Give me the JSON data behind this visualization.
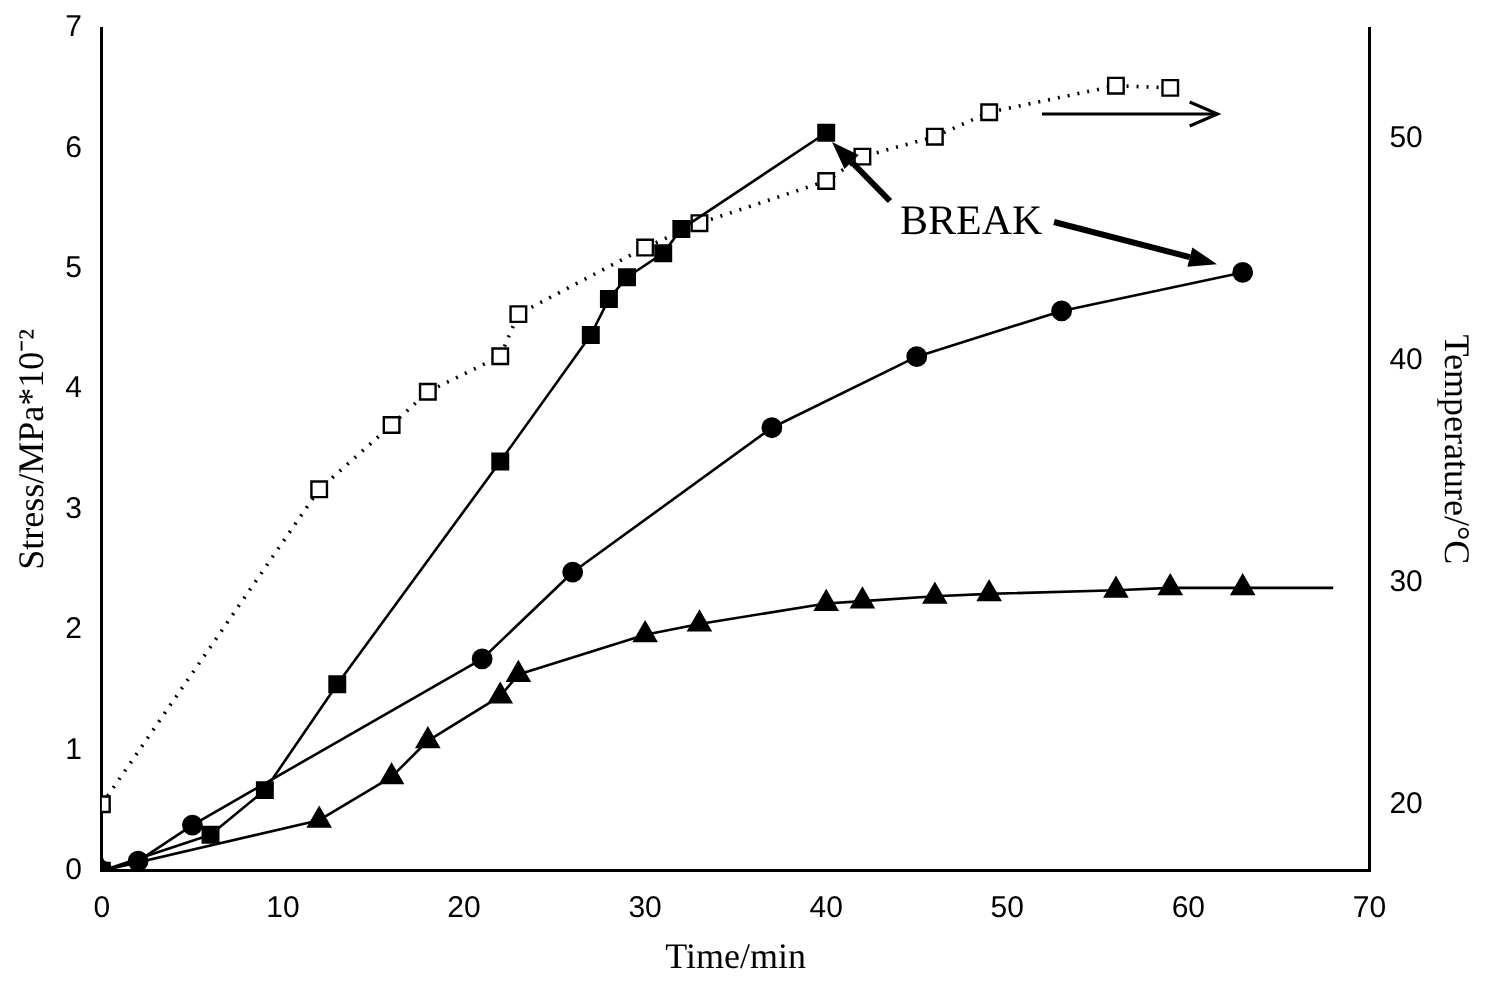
{
  "chart_data": {
    "type": "line",
    "xlabel": "Time/min",
    "ylabel": "Stress/MPa*10⁻²",
    "y2label": "Temperature/°C",
    "xlim": [
      0,
      70
    ],
    "xticks": [
      0,
      10,
      20,
      30,
      40,
      50,
      60,
      70
    ],
    "ylim": [
      0,
      7
    ],
    "yticks": [
      0,
      1,
      2,
      3,
      4,
      5,
      6,
      7
    ],
    "y2lim": [
      17,
      55
    ],
    "y2ticks": [
      20,
      30,
      40,
      50
    ],
    "grid": false,
    "legend": false,
    "annotations": [
      "BREAK"
    ],
    "series": [
      {
        "color": "#000000",
        "marker": "square",
        "line_style": "solid",
        "x": [
          0,
          6,
          9,
          13,
          22,
          27,
          28,
          29,
          31,
          32,
          40
        ],
        "values": [
          0,
          0.3,
          0.67,
          1.55,
          3.4,
          4.45,
          4.75,
          4.93,
          5.13,
          5.33,
          6.13
        ]
      },
      {
        "color": "#000000",
        "marker": "circle",
        "line_style": "solid",
        "x": [
          0,
          2,
          5,
          21,
          26,
          37,
          45,
          53,
          63
        ],
        "values": [
          0,
          0.08,
          0.38,
          1.76,
          2.48,
          3.68,
          4.27,
          4.65,
          4.97
        ]
      },
      {
        "color": "#000000",
        "marker": "triangle",
        "line_style": "solid",
        "x": [
          0,
          12,
          16,
          18,
          22,
          23,
          30,
          33,
          40,
          42,
          46,
          49,
          56,
          59,
          63
        ],
        "values": [
          0,
          0.42,
          0.78,
          1.08,
          1.45,
          1.63,
          1.96,
          2.05,
          2.22,
          2.24,
          2.28,
          2.3,
          2.33,
          2.35,
          2.35
        ]
      },
      {
        "color": "#000000",
        "marker": "none",
        "line_style": "solid",
        "x": [
          63,
          68
        ],
        "values": [
          2.35,
          2.35
        ]
      },
      {
        "color": "#000000",
        "marker": "square",
        "line_style": "dotted",
        "axis": "y2",
        "x": [
          0,
          12,
          16,
          18,
          22,
          23,
          30,
          33,
          40,
          42,
          46,
          49,
          56,
          59
        ],
        "values": [
          20,
          34.2,
          37.1,
          38.6,
          40.2,
          42.1,
          45.1,
          46.2,
          48.1,
          49.2,
          50.1,
          51.2,
          52.4,
          52.3
        ]
      }
    ]
  }
}
